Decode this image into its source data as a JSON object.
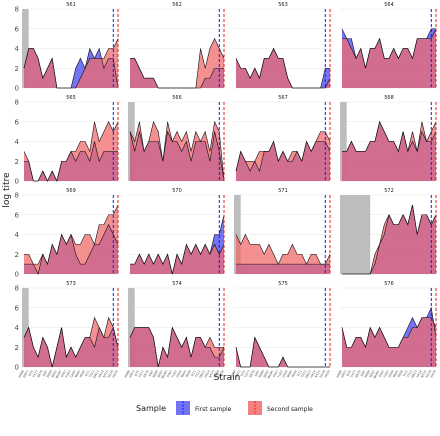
{
  "chart_data": {
    "type": "area",
    "xlabel": "Strain",
    "ylabel": "log titre",
    "ylim": [
      0,
      8
    ],
    "yticks": [
      0,
      2,
      4,
      6,
      8
    ],
    "grid": true,
    "legend": {
      "title": "Sample",
      "position": "bottom",
      "entries": [
        {
          "name": "First sample",
          "fill": "#5b5bf5",
          "line": "#1a1aee"
        },
        {
          "name": "Second sample",
          "fill": "#f06b6b",
          "line": "#ee1a1a"
        }
      ]
    },
    "colors": {
      "first": "#5b5bf5",
      "second": "#f06b6b",
      "grey": "#bdbdbd",
      "first_line": "#1a1aee",
      "second_line": "#ee1a1a"
    },
    "x_count": 21,
    "x_ticks": [
      "HK68",
      "EN72",
      "VI75",
      "TX77",
      "BK79",
      "SI87",
      "BE89",
      "BE92",
      "WU95",
      "SY97",
      "FU02",
      "CA04",
      "WI05",
      "PE09",
      "VI11",
      "TX12",
      "SW13",
      "HK14",
      "NT15",
      "SG16",
      "HK19"
    ],
    "panels": [
      {
        "id": "561",
        "grey_end": 1,
        "first_dash": 19,
        "second_dash": 20,
        "first": [
          2,
          4,
          4,
          3,
          1,
          2,
          3,
          0,
          0,
          0,
          0,
          2,
          3,
          2,
          4,
          3,
          4,
          2,
          3,
          3,
          0
        ],
        "second": [
          2,
          4,
          4,
          3,
          1,
          2,
          3,
          0,
          0,
          0,
          0,
          0,
          1,
          2,
          3,
          3,
          3,
          3,
          4,
          4,
          5
        ]
      },
      {
        "id": "562",
        "grey_end": 0,
        "first_dash": 19,
        "second_dash": 20,
        "first": [
          3,
          3,
          2,
          1,
          1,
          1,
          0,
          0,
          0,
          0,
          0,
          0,
          0,
          0,
          0,
          0,
          1,
          1,
          2,
          2,
          2
        ],
        "second": [
          3,
          3,
          2,
          1,
          1,
          1,
          0,
          0,
          0,
          0,
          0,
          0,
          0,
          0,
          0,
          4,
          2,
          4,
          5,
          4,
          3
        ]
      },
      {
        "id": "563",
        "grey_end": 0,
        "first_dash": 19,
        "second_dash": 20,
        "first": [
          3,
          2,
          2,
          1,
          2,
          1,
          3,
          3,
          4,
          3,
          3,
          1,
          0,
          0,
          0,
          0,
          0,
          0,
          0,
          2,
          2
        ],
        "second": [
          3,
          2,
          2,
          1,
          2,
          1,
          3,
          3,
          4,
          3,
          3,
          1,
          0,
          0,
          0,
          0,
          0,
          0,
          0,
          0,
          1
        ]
      },
      {
        "id": "564",
        "grey_end": 0,
        "first_dash": 19,
        "second_dash": 20,
        "first": [
          6,
          5,
          5,
          3,
          4,
          2,
          4,
          4,
          5,
          3,
          3,
          4,
          3,
          4,
          4,
          3,
          5,
          5,
          5,
          6,
          6
        ],
        "second": [
          5,
          5,
          4,
          3,
          4,
          2,
          4,
          4,
          5,
          3,
          3,
          4,
          3,
          4,
          4,
          3,
          5,
          5,
          5,
          5,
          6
        ]
      },
      {
        "id": "565",
        "grey_end": 0,
        "first_dash": 19,
        "second_dash": 20,
        "first": [
          2,
          2,
          0,
          0,
          1,
          0,
          1,
          0,
          2,
          2,
          3,
          2,
          3,
          3,
          2,
          4,
          2,
          3,
          3,
          3,
          3
        ],
        "second": [
          3,
          2,
          0,
          0,
          1,
          0,
          1,
          0,
          2,
          2,
          3,
          3,
          4,
          4,
          3,
          6,
          4,
          5,
          6,
          5,
          6
        ]
      },
      {
        "id": "566",
        "grey_end": 1,
        "first_dash": 19,
        "second_dash": 20,
        "first": [
          5,
          3,
          5,
          3,
          4,
          4,
          4,
          2,
          5,
          4,
          4,
          3,
          4,
          2,
          4,
          4,
          4,
          2,
          5,
          3,
          0
        ],
        "second": [
          5,
          4,
          6,
          3,
          4,
          6,
          5,
          2,
          6,
          4,
          5,
          4,
          5,
          3,
          5,
          4,
          5,
          3,
          6,
          5,
          0
        ]
      },
      {
        "id": "567",
        "grey_end": 0,
        "first_dash": 19,
        "second_dash": 20,
        "first": [
          1,
          3,
          2,
          1,
          2,
          1,
          3,
          3,
          4,
          2,
          3,
          2,
          2,
          3,
          2,
          4,
          3,
          4,
          4,
          4,
          3
        ],
        "second": [
          1,
          3,
          2,
          2,
          2,
          3,
          3,
          3,
          4,
          2,
          3,
          2,
          3,
          3,
          2,
          4,
          3,
          4,
          5,
          5,
          4
        ]
      },
      {
        "id": "568",
        "grey_end": 1,
        "first_dash": 19,
        "second_dash": 20,
        "first": [
          3,
          3,
          4,
          3,
          3,
          3,
          4,
          4,
          6,
          5,
          4,
          4,
          3,
          5,
          3,
          4,
          3,
          5,
          4,
          4,
          5
        ],
        "second": [
          3,
          3,
          4,
          3,
          3,
          3,
          4,
          4,
          6,
          5,
          4,
          4,
          3,
          5,
          3,
          5,
          3,
          6,
          4,
          5,
          6
        ]
      },
      {
        "id": "569",
        "grey_end": 0,
        "first_dash": 19,
        "second_dash": 20,
        "first": [
          1,
          1,
          1,
          0,
          2,
          1,
          3,
          2,
          4,
          3,
          4,
          2,
          1,
          1,
          2,
          3,
          3,
          4,
          5,
          4,
          3
        ],
        "second": [
          2,
          2,
          1,
          1,
          2,
          1,
          3,
          2,
          4,
          3,
          4,
          3,
          3,
          4,
          4,
          3,
          5,
          5,
          6,
          6,
          7
        ]
      },
      {
        "id": "570",
        "grey_end": 0,
        "first_dash": 19,
        "second_dash": 20,
        "first": [
          1,
          1,
          2,
          1,
          2,
          1,
          2,
          1,
          2,
          0,
          2,
          1,
          3,
          2,
          3,
          2,
          3,
          2,
          4,
          4,
          6
        ],
        "second": [
          1,
          1,
          2,
          1,
          2,
          1,
          2,
          1,
          2,
          0,
          2,
          1,
          3,
          2,
          3,
          2,
          3,
          2,
          3,
          2,
          3
        ]
      },
      {
        "id": "571",
        "grey_end": 1,
        "first_dash": 19,
        "second_dash": 20,
        "first": [
          1,
          1,
          1,
          1,
          1,
          1,
          1,
          1,
          1,
          1,
          1,
          1,
          1,
          1,
          1,
          1,
          1,
          1,
          1,
          1,
          1
        ],
        "second": [
          4,
          3,
          4,
          3,
          3,
          3,
          2,
          3,
          2,
          1,
          2,
          2,
          3,
          2,
          2,
          1,
          2,
          2,
          1,
          1,
          2
        ]
      },
      {
        "id": "572",
        "grey_end": 6,
        "first_dash": 19,
        "second_dash": 20,
        "first": [
          0,
          0,
          0,
          0,
          0,
          0,
          0,
          1,
          3,
          4,
          6,
          5,
          5,
          6,
          5,
          7,
          4,
          6,
          6,
          5,
          6
        ],
        "second": [
          0,
          0,
          0,
          0,
          0,
          0,
          0,
          2,
          3,
          5,
          6,
          5,
          5,
          6,
          5,
          7,
          4,
          6,
          6,
          5,
          6
        ]
      },
      {
        "id": "573",
        "grey_end": 1,
        "first_dash": 19,
        "second_dash": 20,
        "first": [
          3,
          4,
          2,
          1,
          3,
          2,
          0,
          2,
          4,
          1,
          2,
          1,
          2,
          3,
          3,
          2,
          4,
          3,
          3,
          4,
          2
        ],
        "second": [
          3,
          4,
          2,
          1,
          3,
          2,
          0,
          2,
          4,
          1,
          2,
          1,
          2,
          3,
          3,
          5,
          4,
          3,
          5,
          4,
          2
        ]
      },
      {
        "id": "574",
        "grey_end": 1,
        "first_dash": 19,
        "second_dash": 20,
        "first": [
          3,
          4,
          4,
          4,
          4,
          3,
          0,
          2,
          1,
          4,
          3,
          2,
          3,
          1,
          3,
          3,
          2,
          2,
          1,
          1,
          2
        ],
        "second": [
          3,
          4,
          4,
          4,
          4,
          3,
          0,
          2,
          1,
          4,
          3,
          2,
          3,
          1,
          3,
          3,
          2,
          3,
          2,
          2,
          2
        ]
      },
      {
        "id": "575",
        "grey_end": 0,
        "first_dash": 19,
        "second_dash": 20,
        "first": [
          2,
          0,
          0,
          0,
          3,
          2,
          1,
          0,
          0,
          0,
          1,
          0,
          0,
          0,
          0,
          0,
          0,
          0,
          0,
          0,
          0
        ],
        "second": [
          2,
          0,
          0,
          0,
          3,
          2,
          1,
          0,
          0,
          0,
          1,
          0,
          0,
          0,
          0,
          0,
          0,
          0,
          0,
          0,
          0
        ]
      },
      {
        "id": "576",
        "grey_end": 0,
        "first_dash": 19,
        "second_dash": 20,
        "first": [
          4,
          2,
          2,
          3,
          3,
          2,
          4,
          3,
          4,
          3,
          2,
          2,
          2,
          3,
          4,
          5,
          4,
          5,
          5,
          6,
          3
        ],
        "second": [
          4,
          2,
          2,
          3,
          3,
          2,
          4,
          3,
          4,
          3,
          2,
          2,
          2,
          3,
          3,
          4,
          4,
          5,
          5,
          5,
          4
        ]
      }
    ]
  }
}
